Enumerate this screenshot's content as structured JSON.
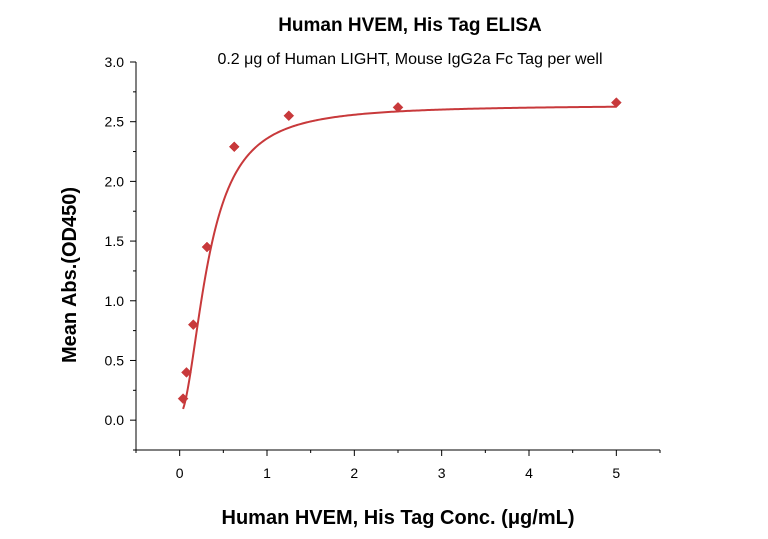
{
  "chart_data": {
    "type": "scatter",
    "title": "Human HVEM, His Tag ELISA",
    "subtitle": "0.2 μg of Human LIGHT, Mouse IgG2a Fc Tag per well",
    "xlabel": "Human HVEM, His Tag Conc. (μg/mL)",
    "ylabel": "Mean Abs.(OD450)",
    "xlim": [
      -0.5,
      5.5
    ],
    "ylim": [
      -0.25,
      3.0
    ],
    "x_ticks": [
      0,
      1,
      2,
      3,
      4,
      5
    ],
    "x_tick_labels": [
      "0",
      "1",
      "2",
      "3",
      "4",
      "5"
    ],
    "y_ticks": [
      0.0,
      0.5,
      1.0,
      1.5,
      2.0,
      2.5,
      3.0
    ],
    "y_tick_labels": [
      "0.0",
      "0.5",
      "1.0",
      "1.5",
      "2.0",
      "2.5",
      "3.0"
    ],
    "grid": false,
    "color": "#c8393b",
    "series": [
      {
        "x": [
          0.039,
          0.078,
          0.156,
          0.3125,
          0.625,
          1.25,
          2.5,
          5.0
        ],
        "y": [
          0.18,
          0.4,
          0.8,
          1.45,
          2.29,
          2.55,
          2.62,
          2.66
        ],
        "marker": "diamond"
      }
    ],
    "fit_curve": {
      "type": "4PL",
      "bottom": 0.05,
      "top": 2.64,
      "ec50": 0.33,
      "hill": 1.9
    }
  }
}
